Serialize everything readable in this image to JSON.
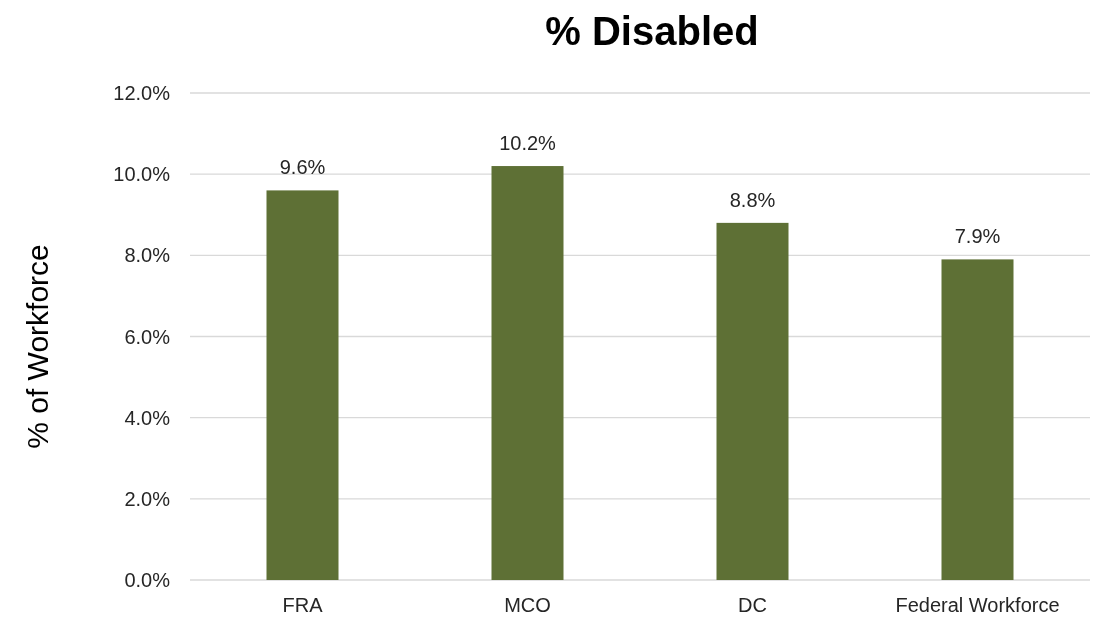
{
  "chart_data": {
    "type": "bar",
    "title": "% Disabled",
    "ylabel": "% of Workforce",
    "categories": [
      "FRA",
      "MCO",
      "DC",
      "Federal Workforce"
    ],
    "values": [
      9.6,
      10.2,
      8.8,
      7.9
    ],
    "value_labels": [
      "9.6%",
      "10.2%",
      "8.8%",
      "7.9%"
    ],
    "color": "#5e7035",
    "ylim": [
      0,
      12
    ],
    "yticks": [
      {
        "value": 0,
        "label": "0.0%"
      },
      {
        "value": 2,
        "label": "2.0%"
      },
      {
        "value": 4,
        "label": "4.0%"
      },
      {
        "value": 6,
        "label": "6.0%"
      },
      {
        "value": 8,
        "label": "8.0%"
      },
      {
        "value": 10,
        "label": "10.0%"
      },
      {
        "value": 12,
        "label": "12.0%"
      }
    ],
    "grid": "y"
  }
}
